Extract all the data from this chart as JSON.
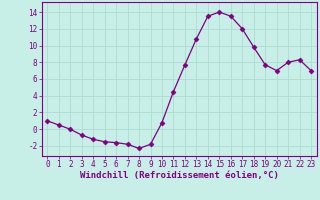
{
  "x": [
    0,
    1,
    2,
    3,
    4,
    5,
    6,
    7,
    8,
    9,
    10,
    11,
    12,
    13,
    14,
    15,
    16,
    17,
    18,
    19,
    20,
    21,
    22,
    23
  ],
  "y": [
    1,
    0.5,
    0,
    -0.7,
    -1.2,
    -1.5,
    -1.6,
    -1.8,
    -2.3,
    -1.8,
    0.8,
    4.5,
    7.7,
    10.8,
    13.5,
    14,
    13.5,
    12,
    9.8,
    7.7,
    7,
    8,
    8.3,
    7
  ],
  "line_color": "#800080",
  "marker": "D",
  "marker_size": 2.5,
  "bg_color": "#c8eee8",
  "grid_color": "#aaddcc",
  "xlabel": "Windchill (Refroidissement éolien,°C)",
  "tick_color": "#800080",
  "spine_color": "#800080",
  "xlim": [
    -0.5,
    23.5
  ],
  "ylim": [
    -3.2,
    15.2
  ],
  "yticks": [
    -2,
    0,
    2,
    4,
    6,
    8,
    10,
    12,
    14
  ],
  "xticks": [
    0,
    1,
    2,
    3,
    4,
    5,
    6,
    7,
    8,
    9,
    10,
    11,
    12,
    13,
    14,
    15,
    16,
    17,
    18,
    19,
    20,
    21,
    22,
    23
  ],
  "tick_fontsize": 5.5,
  "xlabel_fontsize": 6.5
}
